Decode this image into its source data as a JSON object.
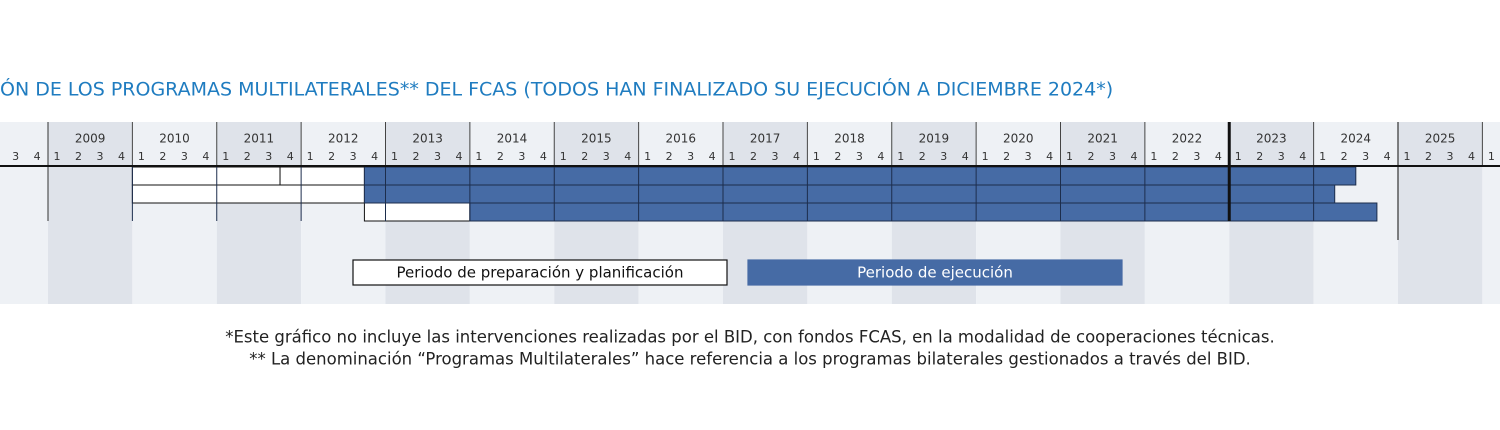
{
  "chart_data": {
    "type": "gantt",
    "title": "ÓN DE LOS PROGRAMAS MULTILATERALES** DEL FCAS (TODOS HAN FINALIZADO SU EJECUCIÓN A DICIEMBRE 2024*)",
    "categories": [
      null,
      "2009",
      "2010",
      "2011",
      "2012",
      "2013",
      "2014",
      "2015",
      "2016",
      "2017",
      "2018",
      "2019",
      "2020",
      "2021",
      "2022",
      "2023",
      "2024",
      "2025",
      null
    ],
    "quarters": [
      "1",
      "2",
      "3",
      "4"
    ],
    "series": [
      {
        "name": "Periodo de preparación y planificación",
        "color": "#ffffff",
        "values": [
          [
            [
              2010,
              2011.75
            ],
            [
              2011.75,
              2012.75
            ]
          ],
          [
            [
              2010,
              2012.75
            ]
          ],
          [
            [
              2012.75,
              2014
            ]
          ]
        ]
      },
      {
        "name": "Periodo de ejecución",
        "color": "#466ba5",
        "values": [
          [
            [
              2012.75,
              2024.5
            ]
          ],
          [
            [
              2012.75,
              2024.25
            ]
          ],
          [
            [
              2014,
              2024.75
            ]
          ]
        ]
      }
    ],
    "reference_line": 2023,
    "notes": [
      "*Este gráfico no incluye las intervenciones realizadas por el BID, con fondos FCAS, en la modalidad de cooperaciones técnicas.",
      "** La denominación “Programas Multilaterales” hace referencia a los programas bilaterales gestionados a través del BID."
    ]
  }
}
